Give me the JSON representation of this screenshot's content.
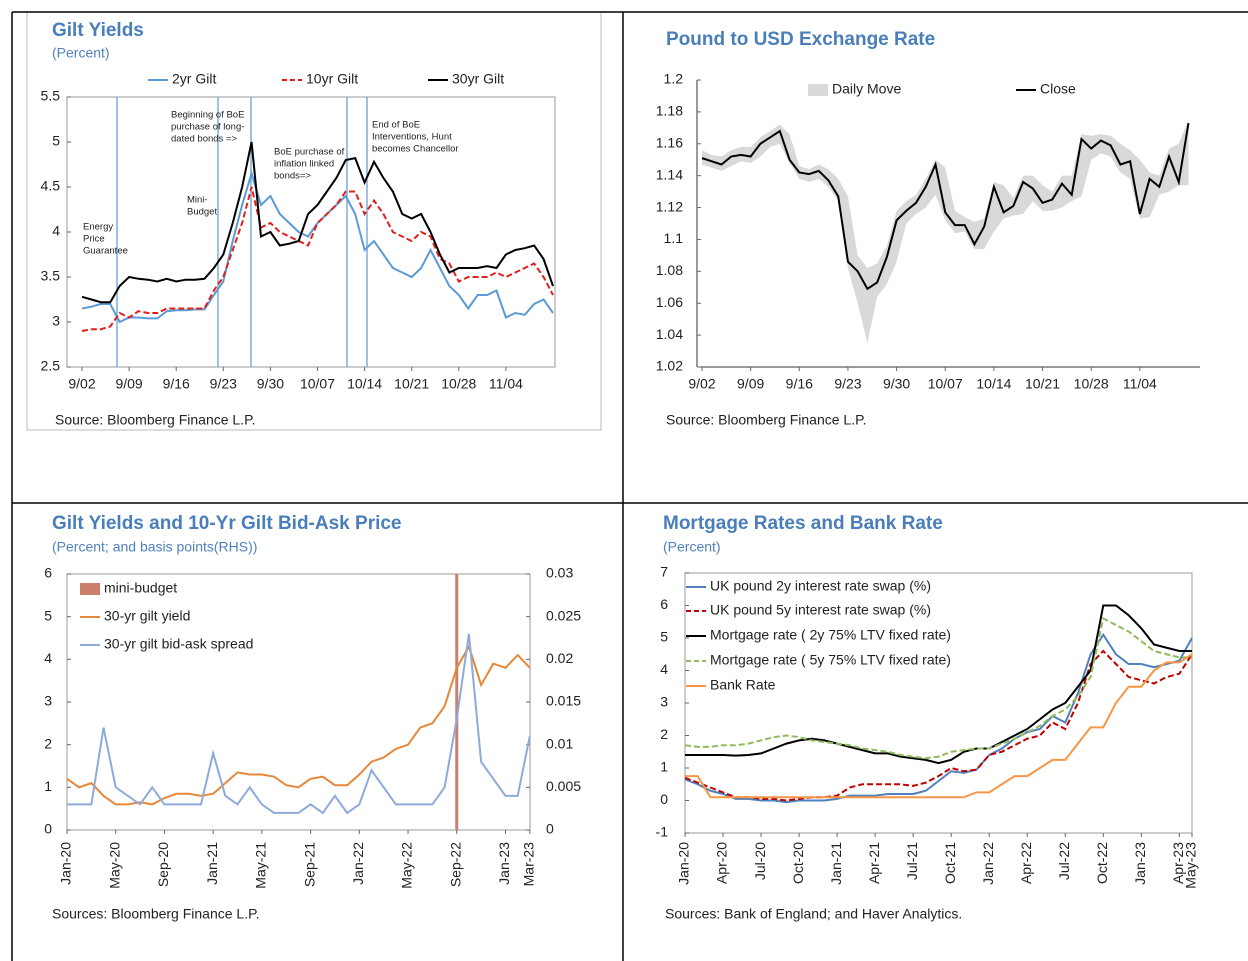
{
  "chart_data": [
    {
      "type": "line",
      "title": "Gilt Yields",
      "subtitle": "(Percent)",
      "source": "Source: Bloomberg Finance L.P.",
      "categories": [
        "9/02",
        null,
        null,
        null,
        null,
        "9/09",
        null,
        null,
        null,
        null,
        "9/16",
        null,
        null,
        null,
        null,
        "9/23",
        null,
        null,
        null,
        null,
        "9/30",
        null,
        null,
        null,
        null,
        "10/07",
        null,
        null,
        null,
        null,
        "10/14",
        null,
        null,
        null,
        null,
        "10/21",
        null,
        null,
        null,
        null,
        "10/28",
        null,
        null,
        null,
        null,
        "11/04",
        null,
        null,
        null,
        null,
        null
      ],
      "ylim": [
        2.5,
        5.5
      ],
      "yticks": [
        2.5,
        3,
        3.5,
        4,
        4.5,
        5,
        5.5
      ],
      "series": [
        {
          "name": "2yr Gilt",
          "color": "#5b9bd5",
          "dash": false,
          "values": [
            3.15,
            3.17,
            3.2,
            3.2,
            3.0,
            3.05,
            3.05,
            3.04,
            3.04,
            3.12,
            3.13,
            3.13,
            3.14,
            3.14,
            3.3,
            3.45,
            3.9,
            4.3,
            4.65,
            4.3,
            4.4,
            4.2,
            4.1,
            4.0,
            3.95,
            4.1,
            4.2,
            4.3,
            4.4,
            4.2,
            3.8,
            3.9,
            3.75,
            3.6,
            3.55,
            3.5,
            3.6,
            3.8,
            3.6,
            3.4,
            3.3,
            3.15,
            3.3,
            3.3,
            3.35,
            3.05,
            3.1,
            3.08,
            3.2,
            3.25,
            3.1
          ]
        },
        {
          "name": "10yr Gilt",
          "color": "#e0201b",
          "dash": true,
          "values": [
            2.9,
            2.92,
            2.92,
            2.95,
            3.1,
            3.05,
            3.12,
            3.1,
            3.1,
            3.15,
            3.15,
            3.15,
            3.15,
            3.15,
            3.35,
            3.5,
            3.8,
            4.1,
            4.5,
            4.05,
            4.1,
            4.0,
            3.95,
            3.9,
            3.85,
            4.1,
            4.2,
            4.3,
            4.45,
            4.45,
            4.2,
            4.35,
            4.2,
            4.0,
            3.95,
            3.9,
            4.0,
            3.95,
            3.7,
            3.65,
            3.45,
            3.5,
            3.5,
            3.5,
            3.55,
            3.5,
            3.55,
            3.6,
            3.65,
            3.5,
            3.3
          ]
        },
        {
          "name": "30yr Gilt",
          "color": "#000000",
          "dash": false,
          "values": [
            3.28,
            3.25,
            3.22,
            3.22,
            3.4,
            3.5,
            3.48,
            3.47,
            3.45,
            3.48,
            3.45,
            3.47,
            3.47,
            3.48,
            3.6,
            3.75,
            4.1,
            4.5,
            5.0,
            3.95,
            4.0,
            3.85,
            3.87,
            3.9,
            4.2,
            4.3,
            4.45,
            4.6,
            4.8,
            4.82,
            4.55,
            4.78,
            4.6,
            4.45,
            4.2,
            4.15,
            4.2,
            4.0,
            3.75,
            3.55,
            3.6,
            3.6,
            3.6,
            3.62,
            3.6,
            3.75,
            3.8,
            3.82,
            3.85,
            3.7,
            3.4
          ]
        }
      ],
      "annotations": [
        {
          "lines": [
            "Energy",
            "Price",
            "Guarantee"
          ]
        },
        {
          "lines": [
            "Mini-",
            "Budget"
          ]
        },
        {
          "lines": [
            "Beginning of BoE",
            "purchase of long-",
            "dated bonds  =>"
          ]
        },
        {
          "lines": [
            "BoE purchase of",
            "inflation linked",
            "bonds=>"
          ]
        },
        {
          "lines": [
            "End of BoE",
            "Interventions, Hunt",
            "becomes Chancellor"
          ]
        }
      ]
    },
    {
      "type": "line",
      "title": "Pound to USD Exchange Rate",
      "source": "Source: Bloomberg Finance L.P.",
      "categories": [
        "9/02",
        null,
        null,
        null,
        null,
        "9/09",
        null,
        null,
        null,
        null,
        "9/16",
        null,
        null,
        null,
        null,
        "9/23",
        null,
        null,
        null,
        null,
        "9/30",
        null,
        null,
        null,
        null,
        "10/07",
        null,
        null,
        null,
        null,
        "10/14",
        null,
        null,
        null,
        null,
        "10/21",
        null,
        null,
        null,
        null,
        "10/28",
        null,
        null,
        null,
        null,
        "11/04",
        null,
        null,
        null,
        null,
        null
      ],
      "ylim": [
        1.02,
        1.2
      ],
      "yticks": [
        1.02,
        1.04,
        1.06,
        1.08,
        1.1,
        1.12,
        1.14,
        1.16,
        1.18,
        1.2
      ],
      "series": [
        {
          "name": "Daily Move",
          "color": "#d9d9d9",
          "high": [
            1.156,
            1.153,
            1.152,
            1.156,
            1.158,
            1.158,
            1.164,
            1.168,
            1.172,
            1.166,
            1.146,
            1.144,
            1.147,
            1.144,
            1.138,
            1.127,
            1.09,
            1.082,
            1.085,
            1.096,
            1.118,
            1.124,
            1.128,
            1.138,
            1.15,
            1.145,
            1.118,
            1.114,
            1.111,
            1.113,
            1.136,
            1.134,
            1.126,
            1.14,
            1.14,
            1.134,
            1.13,
            1.14,
            1.14,
            1.166,
            1.165,
            1.166,
            1.165,
            1.16,
            1.156,
            1.15,
            1.142,
            1.14,
            1.157,
            1.16,
            1.175
          ],
          "low": [
            1.147,
            1.145,
            1.143,
            1.146,
            1.149,
            1.148,
            1.152,
            1.158,
            1.16,
            1.148,
            1.138,
            1.136,
            1.138,
            1.133,
            1.124,
            1.082,
            1.06,
            1.035,
            1.064,
            1.072,
            1.086,
            1.11,
            1.116,
            1.12,
            1.128,
            1.112,
            1.104,
            1.105,
            1.094,
            1.094,
            1.105,
            1.113,
            1.115,
            1.116,
            1.124,
            1.118,
            1.118,
            1.12,
            1.124,
            1.127,
            1.15,
            1.154,
            1.152,
            1.142,
            1.138,
            1.113,
            1.114,
            1.128,
            1.13,
            1.134,
            1.134
          ]
        },
        {
          "name": "Close",
          "color": "#000000",
          "dash": false,
          "values": [
            1.151,
            1.149,
            1.147,
            1.152,
            1.153,
            1.152,
            1.16,
            1.164,
            1.168,
            1.15,
            1.142,
            1.141,
            1.143,
            1.137,
            1.127,
            1.086,
            1.08,
            1.069,
            1.073,
            1.089,
            1.112,
            1.118,
            1.123,
            1.133,
            1.147,
            1.117,
            1.109,
            1.109,
            1.097,
            1.108,
            1.133,
            1.117,
            1.121,
            1.136,
            1.132,
            1.123,
            1.125,
            1.135,
            1.128,
            1.163,
            1.157,
            1.162,
            1.159,
            1.147,
            1.149,
            1.116,
            1.138,
            1.133,
            1.152,
            1.136,
            1.173
          ]
        }
      ]
    },
    {
      "type": "line",
      "title": "Gilt Yields and 10-Yr Gilt Bid-Ask Price",
      "subtitle": "(Percent; and basis points(RHS))",
      "source": "Sources: Bloomberg Finance L.P.",
      "categories": [
        "Jan-20",
        null,
        null,
        null,
        "May-20",
        null,
        null,
        null,
        "Sep-20",
        null,
        null,
        null,
        "Jan-21",
        null,
        null,
        null,
        "May-21",
        null,
        null,
        null,
        "Sep-21",
        null,
        null,
        null,
        "Jan-22",
        null,
        null,
        null,
        "May-22",
        null,
        null,
        null,
        "Sep-22",
        null,
        null,
        null,
        "Jan-23",
        null,
        "Mar-23"
      ],
      "ylim": [
        0,
        6
      ],
      "yticks": [
        0,
        1,
        2,
        3,
        4,
        5,
        6
      ],
      "y2lim": [
        0,
        0.03
      ],
      "y2ticks": [
        0,
        0.005,
        0.01,
        0.015,
        0.02,
        0.025,
        0.03
      ],
      "mini_budget": {
        "name": "mini-budget",
        "color": "#cc7f6a",
        "x": "Sep-22"
      },
      "series": [
        {
          "name": "30-yr gilt yield",
          "color": "#e5883a",
          "dash": false,
          "values": [
            1.2,
            1.0,
            1.1,
            0.8,
            0.6,
            0.6,
            0.65,
            0.6,
            0.75,
            0.85,
            0.85,
            0.8,
            0.85,
            1.1,
            1.35,
            1.3,
            1.3,
            1.25,
            1.05,
            1.0,
            1.2,
            1.25,
            1.05,
            1.05,
            1.3,
            1.6,
            1.7,
            1.9,
            2.0,
            2.4,
            2.5,
            2.9,
            3.8,
            4.3,
            3.4,
            3.9,
            3.8,
            4.1,
            3.8
          ]
        },
        {
          "name": "30-yr gilt bid-ask spread",
          "color": "#8eaadb",
          "dash": false,
          "axis": "y2",
          "values": [
            0.003,
            0.003,
            0.003,
            0.012,
            0.005,
            0.004,
            0.003,
            0.005,
            0.003,
            0.003,
            0.003,
            0.003,
            0.009,
            0.004,
            0.003,
            0.005,
            0.003,
            0.002,
            0.002,
            0.002,
            0.003,
            0.002,
            0.004,
            0.002,
            0.003,
            0.007,
            0.005,
            0.003,
            0.003,
            0.003,
            0.003,
            0.005,
            0.013,
            0.023,
            0.008,
            0.006,
            0.004,
            0.004,
            0.011
          ]
        }
      ]
    },
    {
      "type": "line",
      "title": "Mortgage Rates and Bank Rate",
      "subtitle": "(Percent)",
      "source": "Sources: Bank of England; and Haver Analytics.",
      "categories": [
        "Jan-20",
        null,
        null,
        "Apr-20",
        null,
        null,
        "Jul-20",
        null,
        null,
        "Oct-20",
        null,
        null,
        "Jan-21",
        null,
        null,
        "Apr-21",
        null,
        null,
        "Jul-21",
        null,
        null,
        "Oct-21",
        null,
        null,
        "Jan-22",
        null,
        null,
        "Apr-22",
        null,
        null,
        "Jul-22",
        null,
        null,
        "Oct-22",
        null,
        null,
        "Jan-23",
        null,
        null,
        "Apr-23",
        "May-23"
      ],
      "ylim": [
        -1,
        7
      ],
      "yticks": [
        -1,
        0,
        1,
        2,
        3,
        4,
        5,
        6,
        7
      ],
      "series": [
        {
          "name": "UK pound 2y interest rate swap (%)",
          "color": "#4f81bd",
          "dash": false,
          "values": [
            0.65,
            0.5,
            0.3,
            0.2,
            0.05,
            0.05,
            0.0,
            0.0,
            -0.05,
            0.0,
            0.0,
            0.0,
            0.05,
            0.15,
            0.15,
            0.15,
            0.2,
            0.2,
            0.2,
            0.3,
            0.6,
            0.9,
            0.85,
            0.95,
            1.4,
            1.6,
            1.9,
            2.1,
            2.2,
            2.6,
            2.4,
            3.3,
            4.5,
            5.1,
            4.5,
            4.2,
            4.2,
            4.1,
            4.2,
            4.3,
            5.0
          ]
        },
        {
          "name": "UK pound 5y interest rate swap (%)",
          "color": "#c00000",
          "dash": true,
          "values": [
            0.7,
            0.55,
            0.4,
            0.25,
            0.1,
            0.1,
            0.05,
            0.05,
            0.0,
            0.05,
            0.1,
            0.1,
            0.15,
            0.4,
            0.5,
            0.5,
            0.5,
            0.5,
            0.45,
            0.55,
            0.75,
            1.0,
            0.9,
            0.95,
            1.4,
            1.5,
            1.7,
            1.9,
            2.0,
            2.4,
            2.2,
            3.0,
            4.2,
            4.6,
            4.2,
            3.8,
            3.7,
            3.6,
            3.8,
            3.9,
            4.5
          ]
        },
        {
          "name": "Mortgage rate ( 2y 75% LTV fixed rate)",
          "color": "#000000",
          "dash": false,
          "values": [
            1.4,
            1.4,
            1.4,
            1.4,
            1.38,
            1.4,
            1.45,
            1.6,
            1.75,
            1.85,
            1.9,
            1.85,
            1.75,
            1.65,
            1.55,
            1.45,
            1.45,
            1.35,
            1.3,
            1.25,
            1.15,
            1.25,
            1.5,
            1.6,
            1.6,
            1.8,
            2.0,
            2.2,
            2.5,
            2.8,
            3.0,
            3.5,
            4.0,
            6.0,
            6.0,
            5.7,
            5.3,
            4.8,
            4.7,
            4.6,
            4.6
          ]
        },
        {
          "name": "Mortgage rate ( 5y 75% LTV fixed rate)",
          "color": "#8fbc5a",
          "dash": true,
          "values": [
            1.7,
            1.65,
            1.65,
            1.7,
            1.7,
            1.75,
            1.85,
            1.95,
            2.0,
            1.95,
            1.85,
            1.8,
            1.75,
            1.7,
            1.6,
            1.55,
            1.5,
            1.4,
            1.35,
            1.3,
            1.35,
            1.5,
            1.55,
            1.6,
            1.6,
            1.75,
            1.9,
            2.1,
            2.3,
            2.6,
            2.8,
            3.2,
            3.8,
            5.6,
            5.4,
            5.2,
            4.9,
            4.6,
            4.5,
            4.4,
            4.4
          ]
        },
        {
          "name": "Bank Rate",
          "color": "#f79646",
          "dash": false,
          "values": [
            0.75,
            0.75,
            0.1,
            0.1,
            0.1,
            0.1,
            0.1,
            0.1,
            0.1,
            0.1,
            0.1,
            0.1,
            0.1,
            0.1,
            0.1,
            0.1,
            0.1,
            0.1,
            0.1,
            0.1,
            0.1,
            0.1,
            0.1,
            0.25,
            0.25,
            0.5,
            0.75,
            0.75,
            1.0,
            1.25,
            1.25,
            1.75,
            2.25,
            2.25,
            3.0,
            3.5,
            3.5,
            4.0,
            4.25,
            4.25,
            4.5
          ]
        }
      ]
    }
  ]
}
